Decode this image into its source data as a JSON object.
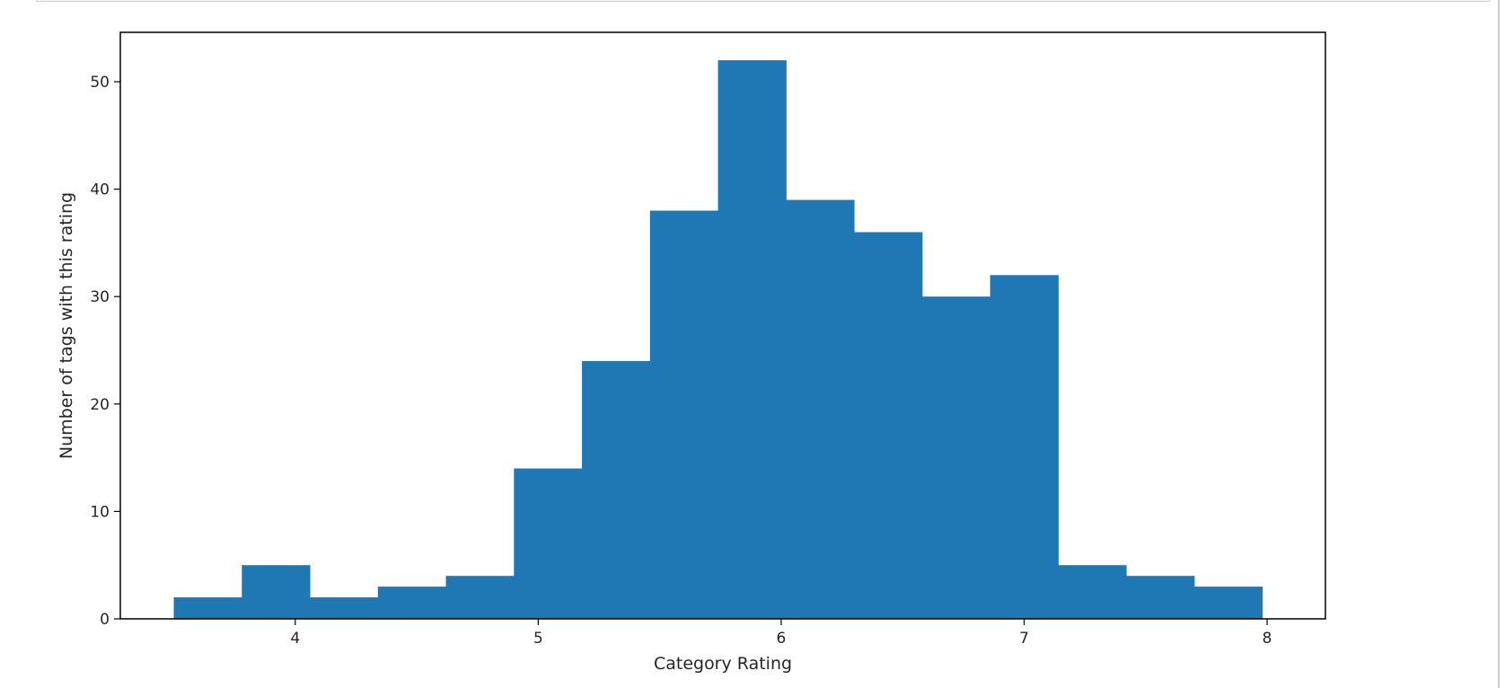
{
  "chart_data": {
    "type": "bar",
    "subtype": "histogram",
    "title": "",
    "xlabel": "Category Rating",
    "ylabel": "Number of tags with this rating",
    "xlim": [
      3.28,
      8.24
    ],
    "ylim": [
      0,
      54.6
    ],
    "x_ticks": [
      4,
      5,
      6,
      7,
      8
    ],
    "y_ticks": [
      0,
      10,
      20,
      30,
      40,
      50
    ],
    "bar_color": "#1f77b4",
    "bin_edges": [
      3.5,
      3.78,
      4.06,
      4.34,
      4.62,
      4.9,
      5.18,
      5.46,
      5.74,
      6.02,
      6.3,
      6.58,
      6.86,
      7.14,
      7.42,
      7.7,
      7.98
    ],
    "counts": [
      2,
      5,
      2,
      3,
      4,
      14,
      24,
      38,
      52,
      39,
      36,
      30,
      32,
      5,
      4,
      3
    ],
    "grid": false,
    "legend": "none"
  }
}
